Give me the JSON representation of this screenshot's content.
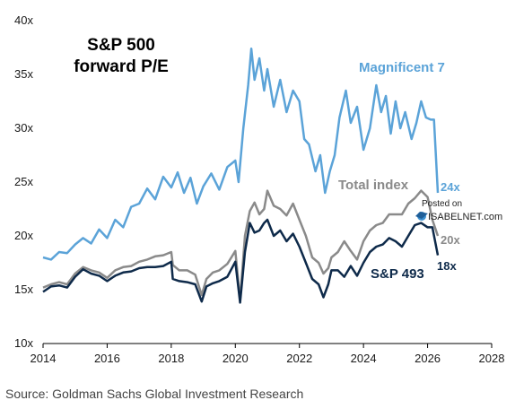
{
  "chart_data": {
    "type": "line",
    "title_lines": [
      "S&P 500",
      "forward P/E"
    ],
    "xlabel": "",
    "ylabel": "",
    "xlim": [
      2014,
      2028
    ],
    "ylim": [
      10,
      40
    ],
    "x_ticks": [
      2014,
      2016,
      2018,
      2020,
      2022,
      2024,
      2026,
      2028
    ],
    "y_ticks": [
      10,
      15,
      20,
      25,
      30,
      35,
      40
    ],
    "y_tick_labels": [
      "10x",
      "15x",
      "20x",
      "25x",
      "30x",
      "35x",
      "40x"
    ],
    "grid": false,
    "series": [
      {
        "name": "Magnificent 7",
        "color": "#5ba3d8",
        "end_label": "24x",
        "points": [
          [
            2014.0,
            18.0
          ],
          [
            2014.25,
            17.8
          ],
          [
            2014.5,
            18.5
          ],
          [
            2014.75,
            18.4
          ],
          [
            2015.0,
            19.2
          ],
          [
            2015.25,
            19.8
          ],
          [
            2015.5,
            19.3
          ],
          [
            2015.75,
            20.6
          ],
          [
            2016.0,
            19.8
          ],
          [
            2016.25,
            21.5
          ],
          [
            2016.5,
            20.8
          ],
          [
            2016.75,
            22.7
          ],
          [
            2017.0,
            23.0
          ],
          [
            2017.25,
            24.4
          ],
          [
            2017.5,
            23.4
          ],
          [
            2017.75,
            25.5
          ],
          [
            2018.0,
            24.5
          ],
          [
            2018.2,
            25.9
          ],
          [
            2018.4,
            24.0
          ],
          [
            2018.6,
            25.4
          ],
          [
            2018.8,
            23.0
          ],
          [
            2019.0,
            24.6
          ],
          [
            2019.25,
            25.8
          ],
          [
            2019.5,
            24.3
          ],
          [
            2019.75,
            26.4
          ],
          [
            2020.0,
            27.0
          ],
          [
            2020.1,
            25.0
          ],
          [
            2020.25,
            30.0
          ],
          [
            2020.4,
            34.0
          ],
          [
            2020.5,
            37.4
          ],
          [
            2020.6,
            34.5
          ],
          [
            2020.75,
            36.5
          ],
          [
            2020.9,
            33.5
          ],
          [
            2021.0,
            35.5
          ],
          [
            2021.2,
            32.0
          ],
          [
            2021.4,
            34.5
          ],
          [
            2021.6,
            31.5
          ],
          [
            2021.8,
            33.5
          ],
          [
            2022.0,
            32.5
          ],
          [
            2022.15,
            29.0
          ],
          [
            2022.3,
            28.5
          ],
          [
            2022.5,
            26.0
          ],
          [
            2022.65,
            27.5
          ],
          [
            2022.8,
            24.0
          ],
          [
            2022.95,
            26.0
          ],
          [
            2023.1,
            27.5
          ],
          [
            2023.25,
            31.0
          ],
          [
            2023.45,
            33.5
          ],
          [
            2023.6,
            30.5
          ],
          [
            2023.8,
            32.0
          ],
          [
            2024.0,
            28.0
          ],
          [
            2024.2,
            30.0
          ],
          [
            2024.4,
            34.0
          ],
          [
            2024.55,
            31.5
          ],
          [
            2024.7,
            33.0
          ],
          [
            2024.85,
            29.5
          ],
          [
            2025.0,
            32.5
          ],
          [
            2025.15,
            30.0
          ],
          [
            2025.3,
            31.5
          ],
          [
            2025.5,
            29.0
          ],
          [
            2025.65,
            30.5
          ],
          [
            2025.8,
            32.5
          ],
          [
            2025.95,
            31.0
          ],
          [
            2026.1,
            30.8
          ],
          [
            2026.2,
            30.8
          ],
          [
            2026.32,
            24.0
          ]
        ]
      },
      {
        "name": "Total index",
        "color": "#8a8a8a",
        "end_label": "20x",
        "points": [
          [
            2014.0,
            15.2
          ],
          [
            2014.25,
            15.5
          ],
          [
            2014.5,
            15.7
          ],
          [
            2014.75,
            15.5
          ],
          [
            2015.0,
            16.5
          ],
          [
            2015.25,
            17.1
          ],
          [
            2015.5,
            16.8
          ],
          [
            2015.75,
            16.6
          ],
          [
            2016.0,
            16.1
          ],
          [
            2016.25,
            16.8
          ],
          [
            2016.5,
            17.1
          ],
          [
            2016.75,
            17.2
          ],
          [
            2017.0,
            17.6
          ],
          [
            2017.25,
            17.8
          ],
          [
            2017.5,
            18.1
          ],
          [
            2017.75,
            18.2
          ],
          [
            2018.0,
            18.5
          ],
          [
            2018.05,
            17.3
          ],
          [
            2018.25,
            16.8
          ],
          [
            2018.5,
            16.8
          ],
          [
            2018.75,
            16.4
          ],
          [
            2018.95,
            14.5
          ],
          [
            2019.1,
            16.0
          ],
          [
            2019.3,
            16.6
          ],
          [
            2019.5,
            16.8
          ],
          [
            2019.75,
            17.4
          ],
          [
            2020.0,
            18.6
          ],
          [
            2020.15,
            14.0
          ],
          [
            2020.3,
            20.0
          ],
          [
            2020.45,
            22.3
          ],
          [
            2020.6,
            23.1
          ],
          [
            2020.75,
            22.0
          ],
          [
            2020.9,
            22.5
          ],
          [
            2021.0,
            24.2
          ],
          [
            2021.2,
            22.8
          ],
          [
            2021.4,
            22.5
          ],
          [
            2021.6,
            21.9
          ],
          [
            2021.8,
            23.0
          ],
          [
            2022.0,
            21.5
          ],
          [
            2022.2,
            20.0
          ],
          [
            2022.4,
            18.0
          ],
          [
            2022.6,
            17.5
          ],
          [
            2022.75,
            16.5
          ],
          [
            2022.9,
            17.0
          ],
          [
            2023.0,
            18.0
          ],
          [
            2023.2,
            18.5
          ],
          [
            2023.4,
            19.5
          ],
          [
            2023.6,
            18.6
          ],
          [
            2023.8,
            17.8
          ],
          [
            2024.0,
            19.5
          ],
          [
            2024.2,
            20.5
          ],
          [
            2024.4,
            21.0
          ],
          [
            2024.6,
            21.2
          ],
          [
            2024.8,
            22.0
          ],
          [
            2025.0,
            22.0
          ],
          [
            2025.2,
            22.0
          ],
          [
            2025.4,
            23.0
          ],
          [
            2025.6,
            23.5
          ],
          [
            2025.8,
            24.2
          ],
          [
            2026.0,
            23.6
          ],
          [
            2026.15,
            21.5
          ],
          [
            2026.32,
            20.0
          ]
        ]
      },
      {
        "name": "S&P 493",
        "color": "#0e2a4a",
        "end_label": "18x",
        "points": [
          [
            2014.0,
            14.8
          ],
          [
            2014.25,
            15.3
          ],
          [
            2014.5,
            15.4
          ],
          [
            2014.75,
            15.2
          ],
          [
            2015.0,
            16.2
          ],
          [
            2015.25,
            16.9
          ],
          [
            2015.5,
            16.5
          ],
          [
            2015.75,
            16.3
          ],
          [
            2016.0,
            15.8
          ],
          [
            2016.25,
            16.3
          ],
          [
            2016.5,
            16.6
          ],
          [
            2016.75,
            16.7
          ],
          [
            2017.0,
            17.0
          ],
          [
            2017.25,
            17.1
          ],
          [
            2017.5,
            17.1
          ],
          [
            2017.75,
            17.2
          ],
          [
            2018.0,
            17.6
          ],
          [
            2018.05,
            16.0
          ],
          [
            2018.25,
            15.8
          ],
          [
            2018.5,
            15.7
          ],
          [
            2018.75,
            15.5
          ],
          [
            2018.95,
            13.9
          ],
          [
            2019.1,
            15.3
          ],
          [
            2019.3,
            15.6
          ],
          [
            2019.5,
            15.8
          ],
          [
            2019.75,
            16.2
          ],
          [
            2020.0,
            17.6
          ],
          [
            2020.15,
            13.8
          ],
          [
            2020.3,
            18.5
          ],
          [
            2020.45,
            21.2
          ],
          [
            2020.6,
            20.3
          ],
          [
            2020.75,
            20.5
          ],
          [
            2020.9,
            21.2
          ],
          [
            2021.0,
            21.5
          ],
          [
            2021.2,
            20.0
          ],
          [
            2021.4,
            20.5
          ],
          [
            2021.6,
            19.5
          ],
          [
            2021.8,
            20.2
          ],
          [
            2022.0,
            19.0
          ],
          [
            2022.2,
            17.5
          ],
          [
            2022.4,
            16.0
          ],
          [
            2022.6,
            15.5
          ],
          [
            2022.75,
            14.3
          ],
          [
            2022.9,
            15.5
          ],
          [
            2023.0,
            16.8
          ],
          [
            2023.2,
            16.8
          ],
          [
            2023.4,
            16.2
          ],
          [
            2023.6,
            17.2
          ],
          [
            2023.8,
            16.3
          ],
          [
            2024.0,
            17.5
          ],
          [
            2024.2,
            18.5
          ],
          [
            2024.4,
            19.0
          ],
          [
            2024.6,
            19.2
          ],
          [
            2024.8,
            19.8
          ],
          [
            2025.0,
            19.5
          ],
          [
            2025.2,
            19.0
          ],
          [
            2025.4,
            20.0
          ],
          [
            2025.6,
            21.0
          ],
          [
            2025.8,
            21.2
          ],
          [
            2026.0,
            20.8
          ],
          [
            2026.15,
            20.8
          ],
          [
            2026.32,
            18.2
          ]
        ]
      }
    ]
  },
  "watermark": {
    "line1": "Posted on",
    "line2": "ISABELNET.com"
  },
  "source": "Source: Goldman Sachs Global Investment Research"
}
